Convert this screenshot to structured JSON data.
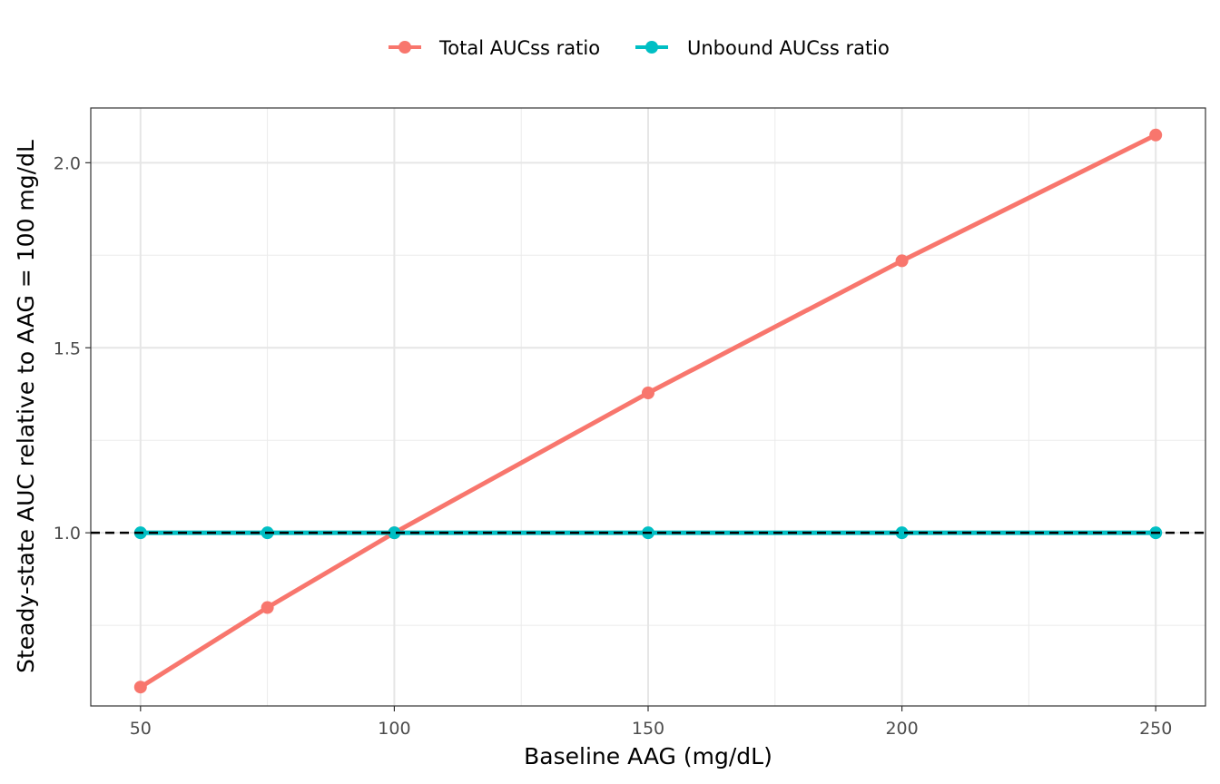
{
  "chart_data": {
    "type": "line",
    "xlabel": "Baseline AAG (mg/dL)",
    "ylabel": "Steady-state AUC relative to AAG = 100 mg/dL",
    "x_ticks": [
      50,
      100,
      150,
      200,
      250
    ],
    "y_ticks": [
      1.0,
      1.5,
      2.0
    ],
    "x_tick_labels": [
      "50",
      "100",
      "150",
      "200",
      "250"
    ],
    "y_tick_labels": [
      "1.0",
      "1.5",
      "2.0"
    ],
    "xlim": [
      40.2,
      259.8
    ],
    "ylim": [
      0.532,
      2.148
    ],
    "reference_line": {
      "y": 1.0,
      "style": "dashed",
      "color": "#000000"
    },
    "grid": true,
    "legend_position": "top",
    "series": [
      {
        "name": "Total AUCss ratio",
        "color": "#F8766D",
        "x": [
          50,
          75,
          100,
          150,
          200,
          250
        ],
        "y": [
          0.583,
          0.798,
          1.0,
          1.378,
          1.735,
          2.075
        ]
      },
      {
        "name": "Unbound AUCss ratio",
        "color": "#00BFC4",
        "x": [
          50,
          75,
          100,
          150,
          200,
          250
        ],
        "y": [
          1.0,
          1.0,
          1.0,
          1.0,
          1.0,
          1.0
        ]
      }
    ]
  }
}
